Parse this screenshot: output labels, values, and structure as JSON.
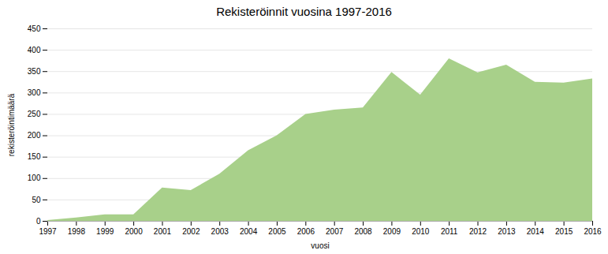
{
  "chart_data": {
    "type": "area",
    "title": "Rekisteröinnit vuosina 1997-2016",
    "xlabel": "vuosi",
    "ylabel": "rekisteröintimäärä",
    "x": [
      1997,
      1998,
      1999,
      2000,
      2001,
      2002,
      2003,
      2004,
      2005,
      2006,
      2007,
      2008,
      2009,
      2010,
      2011,
      2012,
      2013,
      2014,
      2015,
      2016
    ],
    "values": [
      2,
      8,
      15,
      15,
      78,
      72,
      110,
      165,
      200,
      250,
      260,
      265,
      348,
      295,
      380,
      347,
      365,
      325,
      323,
      333
    ],
    "color": "#a8d08a",
    "xlim": [
      1997,
      2016
    ],
    "xticks": [
      1997,
      1998,
      1999,
      2000,
      2001,
      2002,
      2003,
      2004,
      2005,
      2006,
      2007,
      2008,
      2009,
      2010,
      2011,
      2012,
      2013,
      2014,
      2015,
      2016
    ],
    "ylim": [
      0,
      450
    ],
    "yticks": [
      0,
      50,
      100,
      150,
      200,
      250,
      300,
      350,
      400,
      450
    ],
    "grid": true
  }
}
